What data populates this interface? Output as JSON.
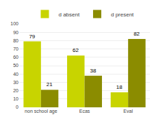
{
  "chart_data": {
    "type": "bar",
    "categories": [
      "non school age",
      "Ecas",
      "Eval"
    ],
    "series": [
      {
        "name": "d absent",
        "color": "#c8d400",
        "values": [
          79,
          62,
          18
        ]
      },
      {
        "name": "d present",
        "color": "#8b8c00",
        "values": [
          21,
          38,
          82
        ]
      }
    ],
    "ylim": [
      0,
      100
    ],
    "yticks": [
      0,
      10,
      20,
      30,
      40,
      50,
      60,
      70,
      80,
      90,
      100
    ],
    "grid": true,
    "legend": "top",
    "data_labels": true
  }
}
